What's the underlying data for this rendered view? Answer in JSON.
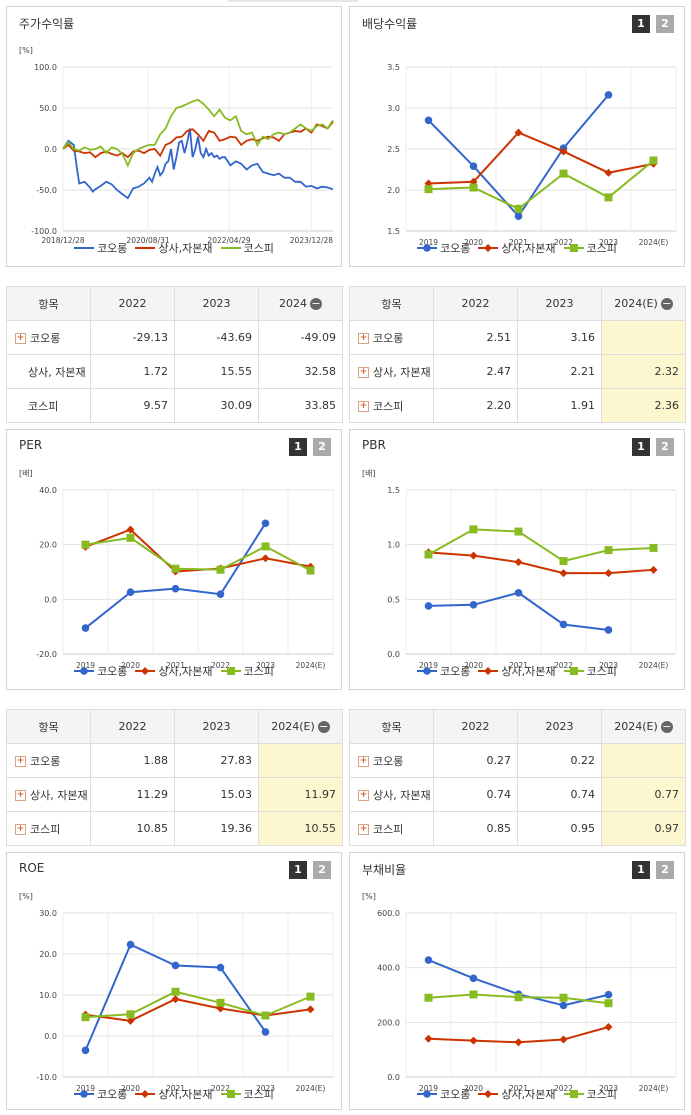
{
  "colors": {
    "kolon": "#3366cc",
    "sector": "#cc3300",
    "kospi": "#88bb22"
  },
  "legend": [
    "코오롱",
    "상사,자본재",
    "코스피"
  ],
  "buttons": {
    "one": "1",
    "two": "2"
  },
  "panels": {
    "stock": {
      "title": "주가수익률",
      "unit": "[%]"
    },
    "dividend": {
      "title": "배당수익률",
      "unit": ""
    },
    "per": {
      "title": "PER",
      "unit": "[배]"
    },
    "pbr": {
      "title": "PBR",
      "unit": "[배]"
    },
    "roe": {
      "title": "ROE",
      "unit": "[%]"
    },
    "debt": {
      "title": "부채비율",
      "unit": "[%]"
    }
  },
  "tables": {
    "stock": {
      "headers": [
        "항목",
        "2022",
        "2023",
        "2024"
      ],
      "rows": [
        {
          "label": "코오롱",
          "plus": true,
          "v": [
            "-29.13",
            "-43.69",
            "-49.09"
          ]
        },
        {
          "label": "상사, 자본재",
          "plus": false,
          "v": [
            "1.72",
            "15.55",
            "32.58"
          ]
        },
        {
          "label": "코스피",
          "plus": false,
          "v": [
            "9.57",
            "30.09",
            "33.85"
          ]
        }
      ]
    },
    "dividend": {
      "headers": [
        "항목",
        "2022",
        "2023",
        "2024(E)"
      ],
      "rows": [
        {
          "label": "코오롱",
          "plus": true,
          "v": [
            "2.51",
            "3.16",
            ""
          ]
        },
        {
          "label": "상사, 자본재",
          "plus": true,
          "v": [
            "2.47",
            "2.21",
            "2.32"
          ]
        },
        {
          "label": "코스피",
          "plus": true,
          "v": [
            "2.20",
            "1.91",
            "2.36"
          ]
        }
      ]
    },
    "per": {
      "headers": [
        "항목",
        "2022",
        "2023",
        "2024(E)"
      ],
      "rows": [
        {
          "label": "코오롱",
          "plus": true,
          "v": [
            "1.88",
            "27.83",
            ""
          ]
        },
        {
          "label": "상사, 자본재",
          "plus": true,
          "v": [
            "11.29",
            "15.03",
            "11.97"
          ]
        },
        {
          "label": "코스피",
          "plus": true,
          "v": [
            "10.85",
            "19.36",
            "10.55"
          ]
        }
      ]
    },
    "pbr": {
      "headers": [
        "항목",
        "2022",
        "2023",
        "2024(E)"
      ],
      "rows": [
        {
          "label": "코오롱",
          "plus": true,
          "v": [
            "0.27",
            "0.22",
            ""
          ]
        },
        {
          "label": "상사, 자본재",
          "plus": true,
          "v": [
            "0.74",
            "0.74",
            "0.77"
          ]
        },
        {
          "label": "코스피",
          "plus": true,
          "v": [
            "0.85",
            "0.95",
            "0.97"
          ]
        }
      ]
    }
  },
  "chart_data": [
    {
      "id": "stock",
      "type": "line",
      "ylim": [
        -100,
        100
      ],
      "yticks": [
        "100.0",
        "50.0",
        "0.0",
        "-50.0",
        "-100.0"
      ],
      "xticks": [
        "2018/12/28",
        "2020/08/31",
        "2022/04/29",
        "2023/12/28"
      ],
      "xlim": [
        0,
        100
      ],
      "xtick_pos": [
        0,
        31.5,
        61.5,
        92
      ],
      "series": [
        {
          "name": "코오롱",
          "x": [
            0,
            2,
            4,
            5,
            6,
            8,
            10,
            11,
            12,
            14,
            16,
            18,
            20,
            22,
            24,
            26,
            28,
            30,
            32,
            33,
            34,
            35,
            36,
            37,
            38,
            39,
            40,
            41,
            42,
            43,
            44,
            45,
            46,
            47,
            48,
            49,
            50,
            51,
            52,
            53,
            54,
            55,
            56,
            57,
            58,
            59,
            60,
            62,
            64,
            66,
            68,
            70,
            72,
            74,
            76,
            78,
            80,
            82,
            84,
            86,
            88,
            90,
            92,
            94,
            96,
            98,
            100
          ],
          "y": [
            0,
            10,
            5,
            -20,
            -42,
            -40,
            -47,
            -52,
            -49,
            -45,
            -40,
            -43,
            -50,
            -55,
            -60,
            -48,
            -46,
            -42,
            -35,
            -40,
            -30,
            -22,
            -32,
            -28,
            -18,
            -15,
            0,
            -25,
            -10,
            8,
            10,
            -5,
            8,
            25,
            -10,
            0,
            15,
            -5,
            -10,
            0,
            -8,
            -5,
            -10,
            -8,
            -12,
            -10,
            -10,
            -20,
            -15,
            -18,
            -25,
            -20,
            -18,
            -28,
            -30,
            -32,
            -30,
            -35,
            -35,
            -40,
            -40,
            -46,
            -45,
            -48,
            -46,
            -47,
            -49
          ]
        },
        {
          "name": "상사,자본재",
          "x": [
            0,
            2,
            4,
            6,
            8,
            10,
            12,
            14,
            16,
            18,
            20,
            22,
            24,
            26,
            28,
            30,
            32,
            34,
            36,
            38,
            40,
            42,
            44,
            46,
            48,
            50,
            52,
            54,
            56,
            58,
            60,
            62,
            64,
            66,
            68,
            70,
            72,
            74,
            76,
            78,
            80,
            82,
            84,
            86,
            88,
            90,
            92,
            94,
            96,
            98,
            100
          ],
          "y": [
            0,
            5,
            -2,
            -3,
            -5,
            -4,
            -10,
            -5,
            -3,
            -6,
            -8,
            -5,
            -10,
            -3,
            -2,
            -5,
            -1,
            0,
            -8,
            5,
            8,
            14,
            15,
            22,
            24,
            18,
            10,
            22,
            20,
            10,
            12,
            15,
            14,
            5,
            10,
            12,
            10,
            13,
            15,
            14,
            10,
            18,
            20,
            22,
            21,
            25,
            20,
            30,
            28,
            25,
            33
          ]
        },
        {
          "name": "코스피",
          "x": [
            0,
            2,
            4,
            6,
            8,
            10,
            12,
            14,
            16,
            18,
            20,
            22,
            24,
            26,
            28,
            30,
            32,
            34,
            36,
            38,
            40,
            42,
            44,
            46,
            48,
            50,
            52,
            54,
            56,
            58,
            60,
            62,
            64,
            66,
            68,
            70,
            72,
            74,
            76,
            78,
            80,
            82,
            84,
            86,
            88,
            90,
            92,
            94,
            96,
            98,
            100
          ],
          "y": [
            0,
            8,
            0,
            -2,
            2,
            -1,
            0,
            3,
            -5,
            2,
            0,
            -6,
            -20,
            -5,
            0,
            3,
            5,
            5,
            18,
            25,
            40,
            50,
            52,
            55,
            58,
            60,
            55,
            48,
            40,
            48,
            38,
            35,
            40,
            22,
            18,
            20,
            5,
            15,
            12,
            18,
            20,
            18,
            20,
            25,
            30,
            25,
            22,
            28,
            30,
            25,
            35
          ]
        }
      ]
    },
    {
      "id": "dividend",
      "type": "line",
      "ylim": [
        1.5,
        3.5
      ],
      "yticks": [
        "3.5",
        "3.0",
        "2.5",
        "2.0",
        "1.5"
      ],
      "categories": [
        "2019",
        "2020",
        "2021",
        "2022",
        "2023",
        "2024(E)"
      ],
      "series": [
        {
          "name": "코오롱",
          "values": [
            2.85,
            2.29,
            1.68,
            2.51,
            3.16,
            null
          ]
        },
        {
          "name": "상사,자본재",
          "values": [
            2.08,
            2.1,
            2.7,
            2.47,
            2.21,
            2.32
          ]
        },
        {
          "name": "코스피",
          "values": [
            2.01,
            2.03,
            1.77,
            2.2,
            1.91,
            2.36
          ]
        }
      ]
    },
    {
      "id": "per",
      "type": "line",
      "ylim": [
        -20,
        40
      ],
      "yticks": [
        "40.0",
        "20.0",
        "0.0",
        "-20.0"
      ],
      "categories": [
        "2019",
        "2020",
        "2021",
        "2022",
        "2023",
        "2024(E)"
      ],
      "series": [
        {
          "name": "코오롱",
          "values": [
            -10.5,
            2.6,
            3.9,
            1.88,
            27.83,
            null
          ]
        },
        {
          "name": "상사,자본재",
          "values": [
            19.2,
            25.5,
            10.2,
            11.29,
            15.03,
            11.97
          ]
        },
        {
          "name": "코스피",
          "values": [
            20.0,
            22.5,
            11.2,
            10.85,
            19.36,
            10.55
          ]
        }
      ]
    },
    {
      "id": "pbr",
      "type": "line",
      "ylim": [
        0.0,
        1.5
      ],
      "yticks": [
        "1.5",
        "1.0",
        "0.5",
        "0.0"
      ],
      "categories": [
        "2019",
        "2020",
        "2021",
        "2022",
        "2023",
        "2024(E)"
      ],
      "series": [
        {
          "name": "코오롱",
          "values": [
            0.44,
            0.45,
            0.56,
            0.27,
            0.22,
            null
          ]
        },
        {
          "name": "상사,자본재",
          "values": [
            0.93,
            0.9,
            0.84,
            0.74,
            0.74,
            0.77
          ]
        },
        {
          "name": "코스피",
          "values": [
            0.91,
            1.14,
            1.12,
            0.85,
            0.95,
            0.97
          ]
        }
      ]
    },
    {
      "id": "roe",
      "type": "line",
      "ylim": [
        -10,
        30
      ],
      "yticks": [
        "30.0",
        "20.0",
        "10.0",
        "0.0",
        "-10.0"
      ],
      "categories": [
        "2019",
        "2020",
        "2021",
        "2022",
        "2023",
        "2024(E)"
      ],
      "series": [
        {
          "name": "코오롱",
          "values": [
            -3.5,
            22.3,
            17.2,
            16.7,
            1.0,
            null
          ]
        },
        {
          "name": "상사,자본재",
          "values": [
            5.2,
            3.7,
            9.0,
            6.7,
            5.0,
            6.5
          ]
        },
        {
          "name": "코스피",
          "values": [
            4.6,
            5.3,
            10.8,
            8.1,
            5.0,
            9.6
          ]
        }
      ]
    },
    {
      "id": "debt",
      "type": "line",
      "ylim": [
        0,
        600
      ],
      "yticks": [
        "600.0",
        "400.0",
        "200.0",
        "0.0"
      ],
      "categories": [
        "2019",
        "2020",
        "2021",
        "2022",
        "2023",
        "2024(E)"
      ],
      "series": [
        {
          "name": "코오롱",
          "values": [
            428,
            361,
            303,
            262,
            301,
            null
          ]
        },
        {
          "name": "상사,자본재",
          "values": [
            140,
            133,
            127,
            137,
            183,
            null
          ]
        },
        {
          "name": "코스피",
          "values": [
            290,
            302,
            292,
            290,
            270,
            null
          ]
        }
      ]
    }
  ]
}
